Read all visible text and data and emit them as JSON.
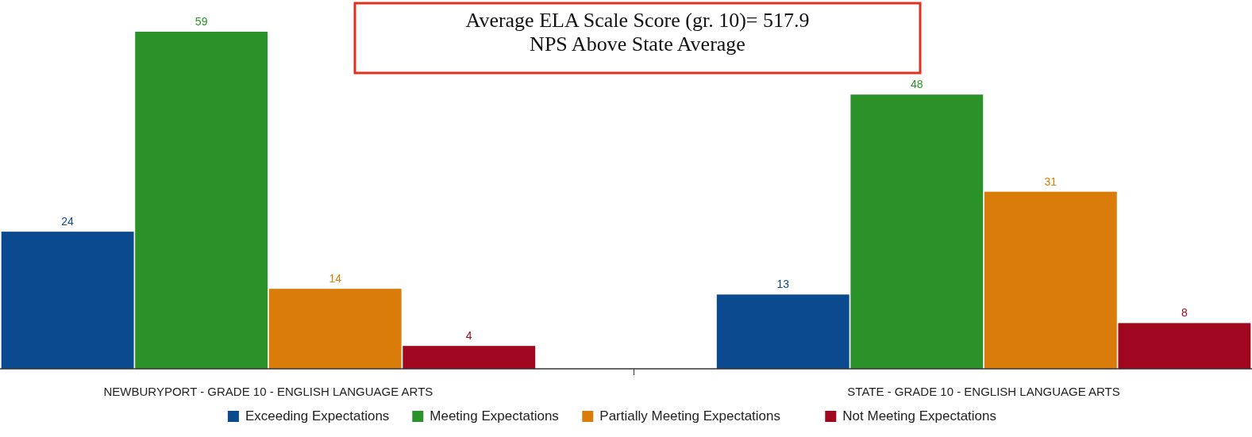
{
  "chart_data": {
    "type": "bar",
    "categories": [
      "NEWBURYPORT - GRADE 10 - ENGLISH LANGUAGE ARTS",
      "STATE - GRADE 10 - ENGLISH LANGUAGE ARTS"
    ],
    "series": [
      {
        "name": "Exceeding Expectations",
        "color": "#0b4a8f",
        "values": [
          24,
          13
        ]
      },
      {
        "name": "Meeting Expectations",
        "color": "#2a9228",
        "values": [
          59,
          48
        ]
      },
      {
        "name": "Partially Meeting Expectations",
        "color": "#d97c0a",
        "values": [
          14,
          31
        ]
      },
      {
        "name": "Not Meeting Expectations",
        "color": "#a0061e",
        "values": [
          4,
          8
        ]
      }
    ],
    "data_labels": true,
    "legend": "bottom",
    "annotations": [
      "Average ELA Scale Score (gr. 10)= 517.9",
      "NPS Above State Average"
    ]
  }
}
